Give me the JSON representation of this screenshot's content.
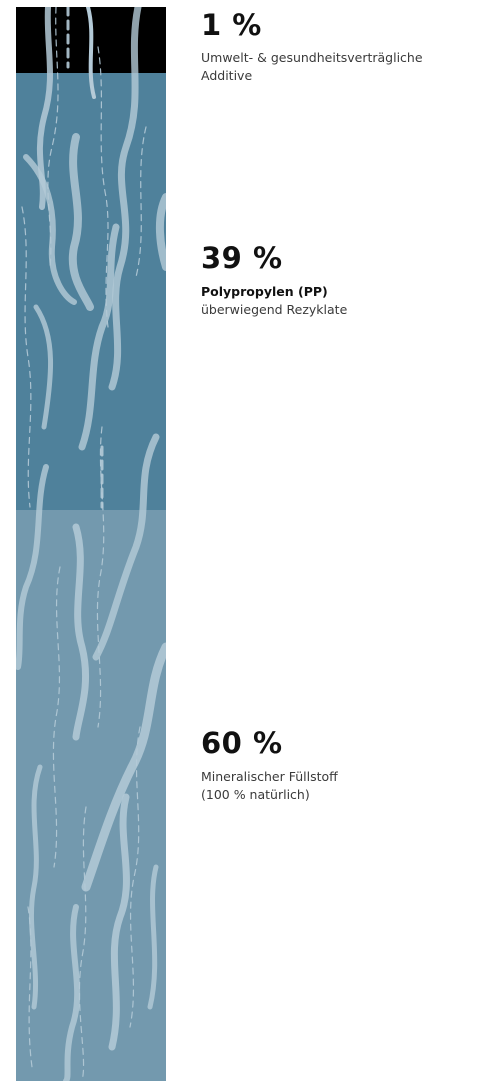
{
  "segments": [
    {
      "percent": "1 %",
      "lines": [
        "Umwelt- & gesundheitsverträgliche",
        "Additive"
      ]
    },
    {
      "percent": "39 %",
      "heading": "Polypropylen (PP)",
      "lines": [
        "überwiegend Rezyklate"
      ]
    },
    {
      "percent": "60 %",
      "lines": [
        "Mineralischer Füllstoff",
        "(100 % natürlich)"
      ]
    }
  ]
}
